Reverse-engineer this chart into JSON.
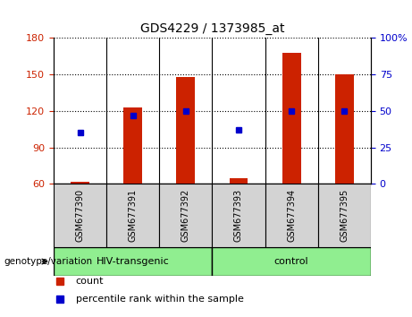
{
  "title": "GDS4229 / 1373985_at",
  "categories": [
    "GSM677390",
    "GSM677391",
    "GSM677392",
    "GSM677393",
    "GSM677394",
    "GSM677395"
  ],
  "red_values": [
    62,
    123,
    148,
    65,
    168,
    150
  ],
  "blue_values": [
    35,
    47,
    50,
    37,
    50,
    50
  ],
  "left_ylim": [
    60,
    180
  ],
  "right_ylim": [
    0,
    100
  ],
  "left_yticks": [
    60,
    90,
    120,
    150,
    180
  ],
  "right_yticks": [
    0,
    25,
    50,
    75,
    100
  ],
  "right_yticklabels": [
    "0",
    "25",
    "50",
    "75",
    "100%"
  ],
  "left_color": "#cc2200",
  "right_color": "#0000cc",
  "bar_color": "#cc2200",
  "dot_color": "#0000cc",
  "groups": [
    {
      "label": "HIV-transgenic",
      "start": 0,
      "end": 3
    },
    {
      "label": "control",
      "start": 3,
      "end": 6
    }
  ],
  "group_color": "#90ee90",
  "header_label": "genotype/variation",
  "legend_count_label": "count",
  "legend_pct_label": "percentile rank within the sample",
  "bar_width": 0.35,
  "sample_box_color": "#d3d3d3",
  "plot_bg_color": "#ffffff"
}
